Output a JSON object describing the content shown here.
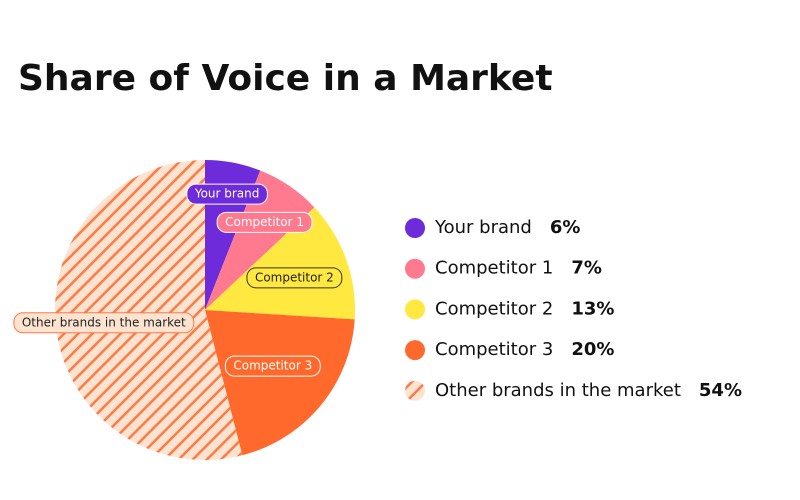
{
  "chart_data": {
    "type": "pie",
    "title": "Share of Voice in a Market",
    "categories": [
      "Your brand",
      "Competitor 1",
      "Competitor 2",
      "Competitor 3",
      "Other brands in the market"
    ],
    "values": [
      6,
      7,
      13,
      20,
      54
    ],
    "value_labels": [
      "6%",
      "7%",
      "13%",
      "20%",
      "54%"
    ],
    "colors": [
      "#6d2bd9",
      "#ff7a8f",
      "#ffe83f",
      "#ff6a2c",
      "#ff7a45"
    ],
    "hatched": [
      false,
      false,
      false,
      false,
      true
    ]
  }
}
